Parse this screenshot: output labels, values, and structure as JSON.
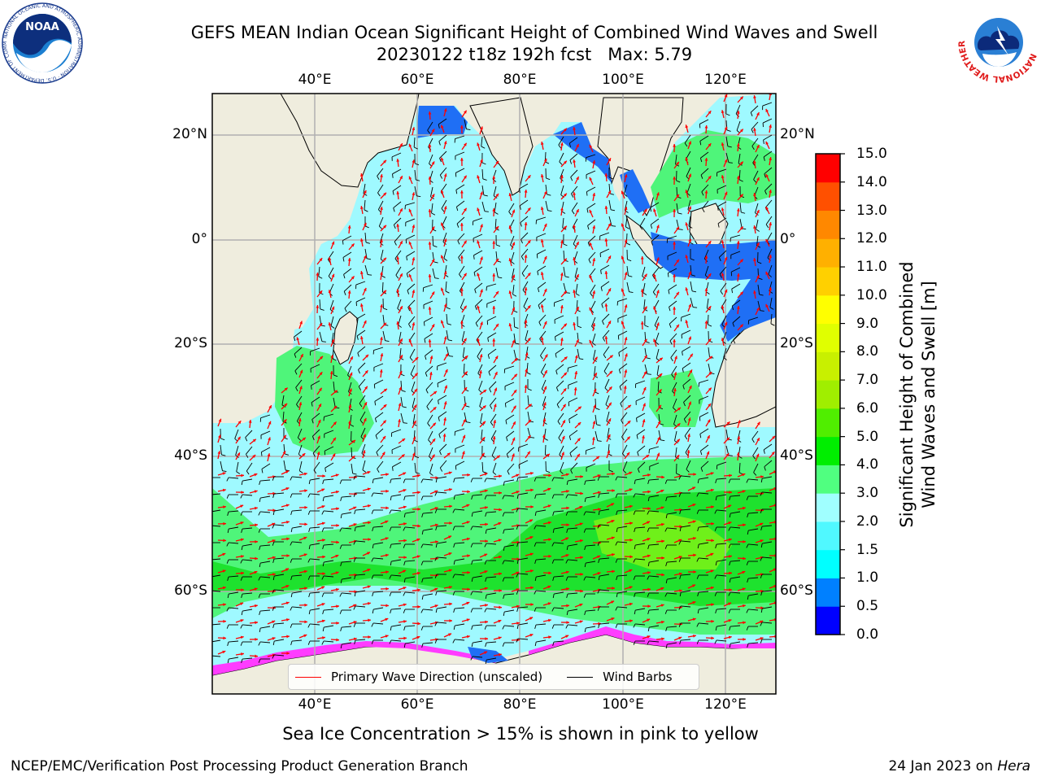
{
  "title": {
    "line1": "GEFS MEAN Indian Ocean Significant Height of Combined Wind Waves and Swell",
    "line2": "20230122 t18z 192h fcst   Max: 5.79"
  },
  "map": {
    "lon_ticks": [
      "40°E",
      "60°E",
      "80°E",
      "100°E",
      "120°E"
    ],
    "lat_ticks": [
      "20°N",
      "0°",
      "20°S",
      "40°S",
      "60°S"
    ],
    "colors": {
      "land": "#efedde",
      "ocean_light": "#9ff9ff",
      "ocean_mid": "#52e8f6",
      "green_light": "#4ff57a",
      "green_mid": "#1ee22e",
      "green_yellow": "#6ff01a",
      "blue_coast": "#1f6ff5",
      "ice_pink": "#ff3cff",
      "arrow": "#ff0000",
      "barb": "#000000",
      "grid": "#b0b0b0"
    }
  },
  "colorbar": {
    "title_line1": "Significant Height of Combined",
    "title_line2": "Wind Waves and Swell [m]",
    "ticks": [
      "0.0",
      "0.5",
      "1.0",
      "1.5",
      "2.0",
      "3.0",
      "4.0",
      "5.0",
      "6.0",
      "7.0",
      "8.0",
      "9.0",
      "10.0",
      "11.0",
      "12.0",
      "13.0",
      "14.0",
      "15.0"
    ],
    "colors": [
      "#0000ff",
      "#0080ff",
      "#00ffff",
      "#50f8ff",
      "#a0ffff",
      "#50ff80",
      "#00ee00",
      "#50ee00",
      "#a0ee00",
      "#c8f000",
      "#e0ff00",
      "#ffff00",
      "#ffd000",
      "#ffb000",
      "#ff8800",
      "#ff5000",
      "#ff0000"
    ]
  },
  "legend": {
    "wave_label": "Primary Wave Direction (unscaled)",
    "barb_label": "Wind Barbs",
    "wave_color": "#ff0000",
    "barb_color": "#000000"
  },
  "caption": "Sea Ice Concentration > 15% is shown in pink to yellow",
  "footer": {
    "left": "NCEP/EMC/Verification Post Processing Product Generation Branch",
    "date": "24 Jan 2023 on ",
    "host": "Hera"
  },
  "logos": {
    "noaa_text": "NOAA",
    "noaa_ring": "NATIONAL OCEANIC AND ATMOSPHERIC ADMINISTRATION · U.S. DEPARTMENT OF COMMERCE",
    "nws_ring": "NATIONAL WEATHER SERVICE"
  }
}
